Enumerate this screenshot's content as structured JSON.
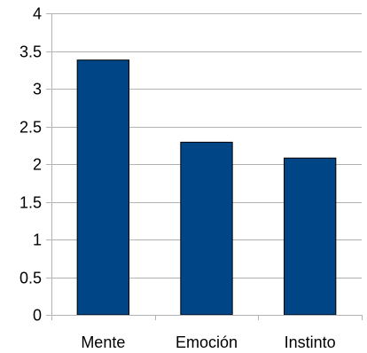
{
  "chart_data": {
    "type": "bar",
    "categories": [
      "Mente",
      "Emoción",
      "Instinto"
    ],
    "values": [
      3.38,
      2.29,
      2.08
    ],
    "title": "",
    "xlabel": "",
    "ylabel": "",
    "ylim": [
      0,
      4
    ],
    "yticks": [
      "0",
      "0.5",
      "1",
      "1.5",
      "2",
      "2.5",
      "3",
      "3.5",
      "4"
    ],
    "grid": true,
    "legend": "none",
    "bar_color": "#004586",
    "bar_edge_color": "#000000"
  }
}
